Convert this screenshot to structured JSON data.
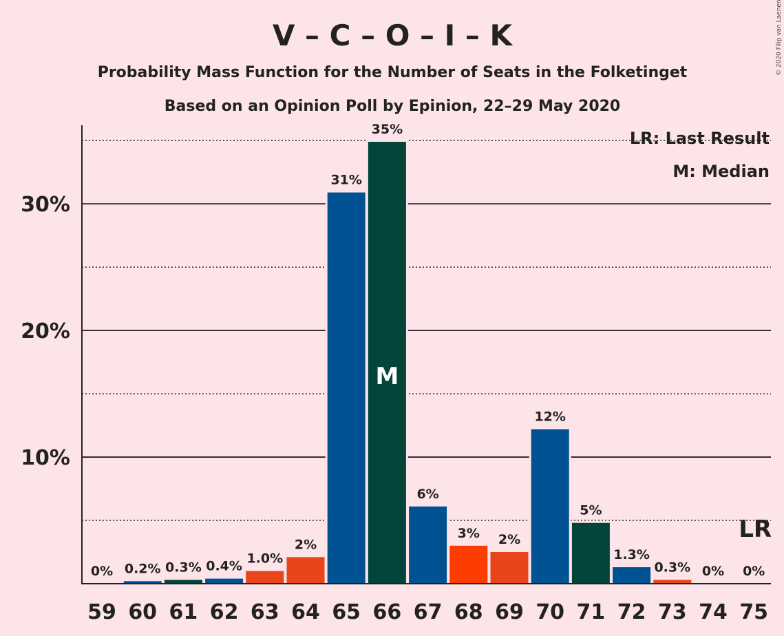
{
  "title": "V – C – O – I – K",
  "subtitle1": "Probability Mass Function for the Number of Seats in the Folketinget",
  "subtitle2": "Based on an Opinion Poll by Epinion, 22–29 May 2020",
  "legend_lr": "LR: Last Result",
  "legend_m": "M: Median",
  "copyright": "© 2020 Filip van Laenen",
  "colors": {
    "background": "#FDE4E8",
    "blue": "#005293",
    "green": "#03453A",
    "red_orange": "#FD3D00",
    "orange": "#E8451A"
  },
  "chart_data": {
    "type": "bar",
    "categories": [
      "59",
      "60",
      "61",
      "62",
      "63",
      "64",
      "65",
      "66",
      "67",
      "68",
      "69",
      "70",
      "71",
      "72",
      "73",
      "74",
      "75"
    ],
    "values": [
      0,
      0.2,
      0.3,
      0.4,
      1.0,
      2.1,
      30.9,
      34.9,
      6.1,
      3.0,
      2.5,
      12.2,
      4.8,
      1.3,
      0.3,
      0,
      0
    ],
    "labels": [
      "0%",
      "0.2%",
      "0.3%",
      "0.4%",
      "1.0%",
      "2%",
      "31%",
      "35%",
      "6%",
      "3%",
      "2%",
      "12%",
      "5%",
      "1.3%",
      "0.3%",
      "0%",
      "0%"
    ],
    "colors": [
      "#005293",
      "#005293",
      "#03453A",
      "#005293",
      "#E8451A",
      "#E8451A",
      "#005293",
      "#03453A",
      "#005293",
      "#FD3D00",
      "#E8451A",
      "#005293",
      "#03453A",
      "#005293",
      "#E8451A",
      "#005293",
      "#005293"
    ],
    "ylim": [
      0,
      38
    ],
    "yticks": [
      10,
      20,
      30
    ],
    "ytick_labels": [
      "10%",
      "20%",
      "30%"
    ],
    "dotted_gridlines": [
      5,
      15,
      25,
      35
    ],
    "median_category": "66",
    "median_label": "M",
    "last_result_category": "75",
    "last_result_label": "LR"
  }
}
